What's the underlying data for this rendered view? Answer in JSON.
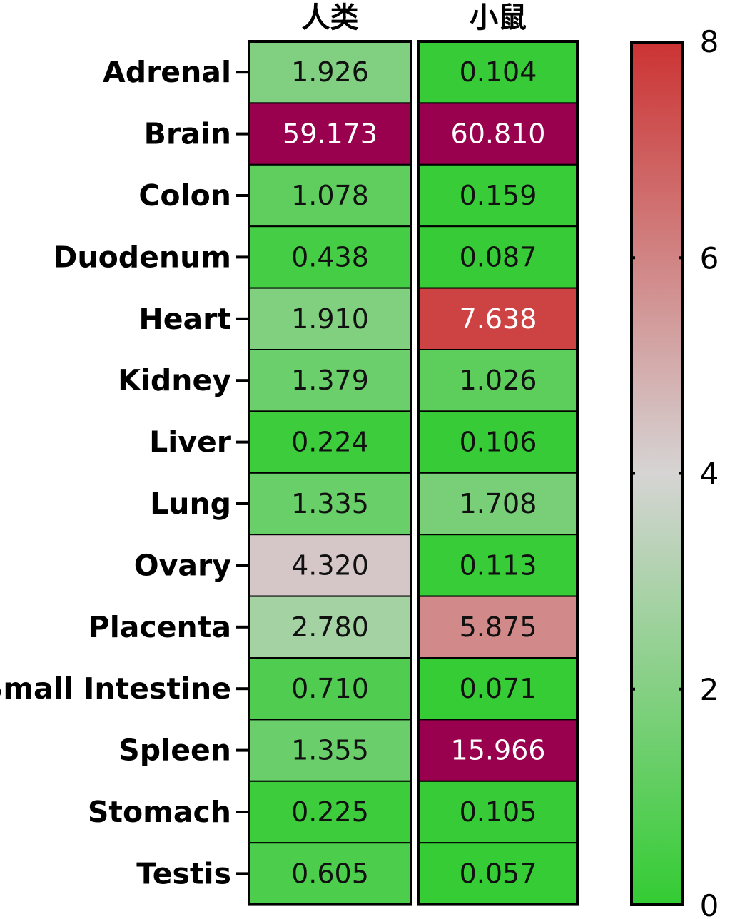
{
  "chart_data": {
    "type": "heatmap",
    "columns": [
      "人类",
      "小鼠"
    ],
    "rows": [
      "Adrenal",
      "Brain",
      "Colon",
      "Duodenum",
      "Heart",
      "Kidney",
      "Liver",
      "Lung",
      "Ovary",
      "Placenta",
      "Small Intestine",
      "Spleen",
      "Stomach",
      "Testis"
    ],
    "values": [
      [
        "1.926",
        "0.104"
      ],
      [
        "59.173",
        "60.810"
      ],
      [
        "1.078",
        "0.159"
      ],
      [
        "0.438",
        "0.087"
      ],
      [
        "1.910",
        "7.638"
      ],
      [
        "1.379",
        "1.026"
      ],
      [
        "0.224",
        "0.106"
      ],
      [
        "1.335",
        "1.708"
      ],
      [
        "4.320",
        "0.113"
      ],
      [
        "2.780",
        "5.875"
      ],
      [
        "0.710",
        "0.071"
      ],
      [
        "1.355",
        "15.966"
      ],
      [
        "0.225",
        "0.105"
      ],
      [
        "0.605",
        "0.057"
      ]
    ],
    "color_scale": {
      "min": 0,
      "max": 8,
      "ticks": [
        "0",
        "2",
        "4",
        "6",
        "8"
      ],
      "colors": [
        {
          "at": 0,
          "color": "#33cc33"
        },
        {
          "at": 4,
          "color": "#d6d4d4"
        },
        {
          "at": 8,
          "color": "#cc3333"
        }
      ],
      "above_max_color": "#99004d"
    }
  }
}
